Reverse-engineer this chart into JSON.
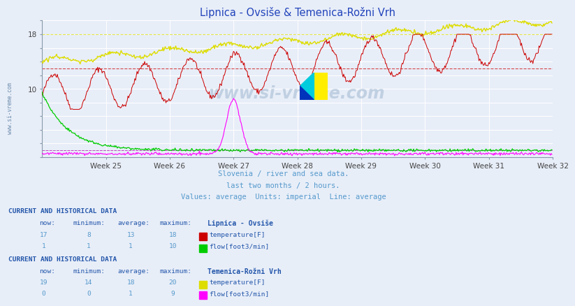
{
  "title": "Lipnica - Ovsiše & Temenica-Rožni Vrh",
  "title_color": "#2244bb",
  "bg_color": "#e8eef8",
  "plot_bg_color": "#e8eef8",
  "xlabel_weeks": [
    "Week 25",
    "Week 26",
    "Week 27",
    "Week 28",
    "Week 29",
    "Week 30",
    "Week 31",
    "Week 32"
  ],
  "ylim": [
    0,
    20
  ],
  "n_points": 672,
  "subtitle1": "Slovenia / river and sea data.",
  "subtitle2": "last two months / 2 hours.",
  "subtitle3": "Values: average  Units: imperial  Line: average",
  "subtitle_color": "#5599cc",
  "table_header_color": "#2255aa",
  "table_value_color": "#5599cc",
  "station1_name": "Lipnica - Ovsiše",
  "station1_temp_color": "#cc0000",
  "station1_flow_color": "#00cc00",
  "station1_temp_now": 17,
  "station1_temp_min": 8,
  "station1_temp_avg": 13,
  "station1_temp_max": 18,
  "station1_flow_now": 1,
  "station1_flow_min": 1,
  "station1_flow_avg": 1,
  "station1_flow_max": 10,
  "station2_name": "Temenica-Rožni Vrh",
  "station2_temp_color": "#dddd00",
  "station2_flow_color": "#ff00ff",
  "station2_temp_now": 19,
  "station2_temp_min": 14,
  "station2_temp_avg": 18,
  "station2_temp_max": 20,
  "station2_flow_now": 0,
  "station2_flow_min": 0,
  "station2_flow_avg": 1,
  "station2_flow_max": 9,
  "avg1_temp": 13,
  "avg2_temp": 18,
  "avg1_flow": 1,
  "avg2_flow": 1
}
